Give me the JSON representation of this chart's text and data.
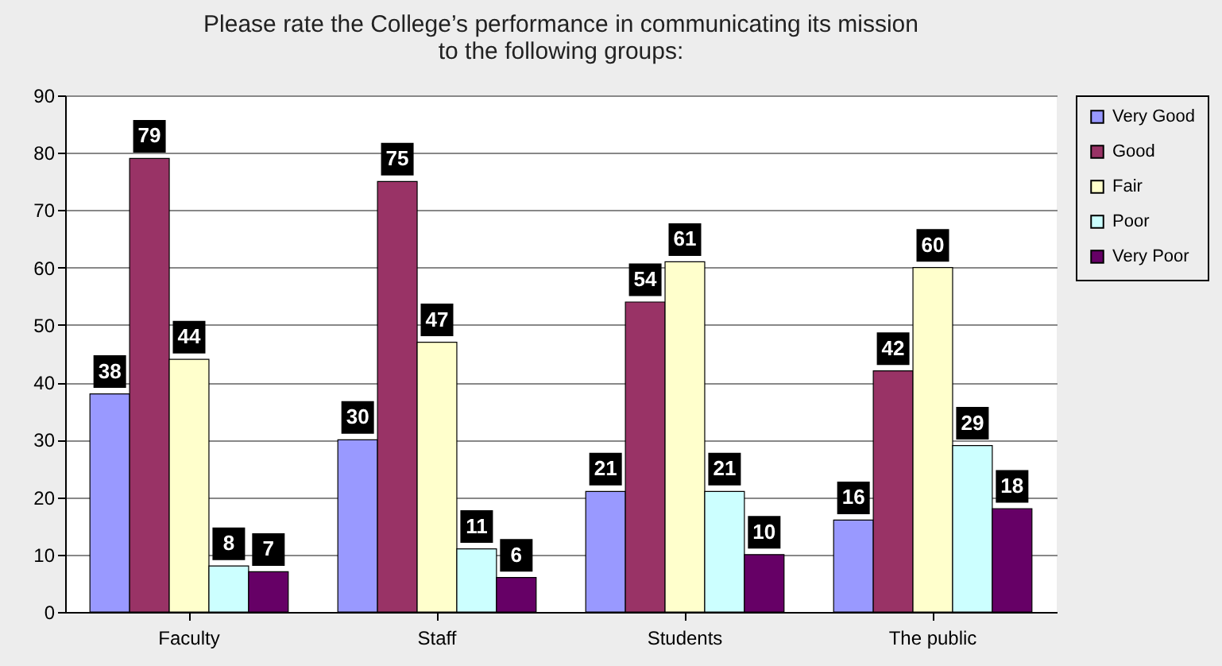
{
  "chart_data": {
    "type": "bar",
    "title": "Please rate the College’s performance in communicating its mission to the following groups:",
    "categories": [
      "Faculty",
      "Staff",
      "Students",
      "The public"
    ],
    "series": [
      {
        "name": "Very Good",
        "color": "#9999ff",
        "values": [
          38,
          30,
          21,
          16
        ]
      },
      {
        "name": "Good",
        "color": "#993366",
        "values": [
          79,
          75,
          54,
          42
        ]
      },
      {
        "name": "Fair",
        "color": "#ffffcc",
        "values": [
          44,
          47,
          61,
          60
        ]
      },
      {
        "name": "Poor",
        "color": "#ccffff",
        "values": [
          8,
          11,
          21,
          29
        ]
      },
      {
        "name": "Very Poor",
        "color": "#660066",
        "values": [
          7,
          6,
          10,
          18
        ]
      }
    ],
    "ylim": [
      0,
      90
    ],
    "yticks": [
      0,
      10,
      20,
      30,
      40,
      50,
      60,
      70,
      80,
      90
    ],
    "grid": "y",
    "legend": "right",
    "data_labels": true
  }
}
